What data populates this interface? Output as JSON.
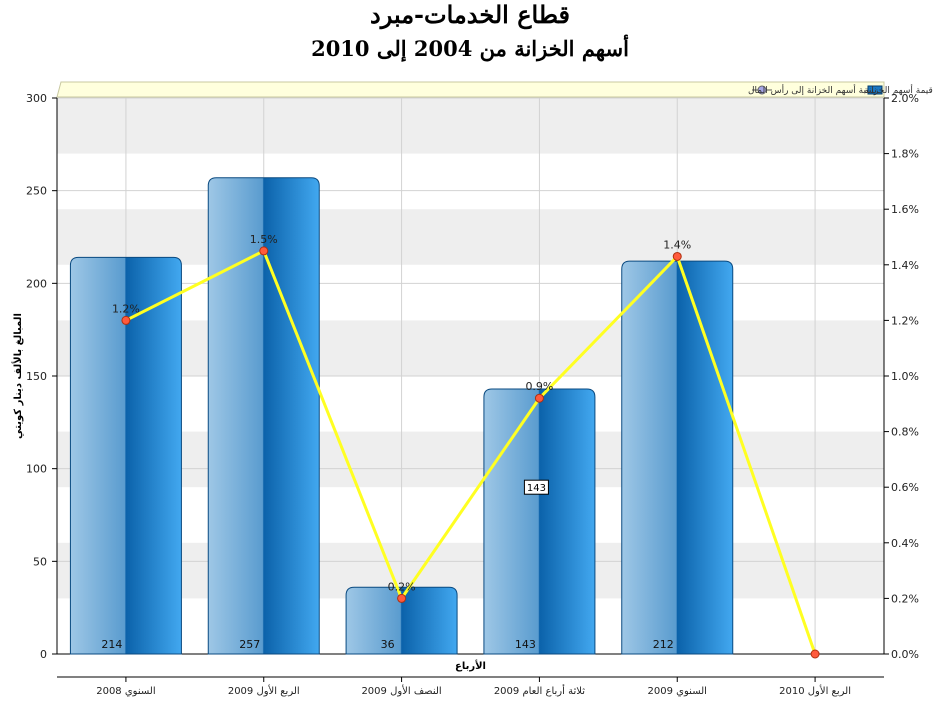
{
  "title": "قطاع الخدمات-مبرد",
  "subtitle": "أسهم الخزانة من 2004 إلى 2010",
  "chart_data": {
    "type": "bar",
    "categories": [
      "السنوي 2008",
      "الربع الأول 2009",
      "النصف الأول 2009",
      "ثلاثة أرباع العام 2009",
      "السنوي 2009",
      "الربع الأول 2010"
    ],
    "series": [
      {
        "name": "قيمة أسهم الخزانة",
        "type": "bar",
        "axis": "left",
        "values": [
          214,
          257,
          36,
          143,
          212,
          0
        ],
        "labels": [
          "214",
          "257",
          "36",
          "143",
          "212",
          ""
        ]
      },
      {
        "name": "نسبة أسهم الخزانة إلى رأس المال",
        "type": "line",
        "axis": "right",
        "values": [
          1.2,
          1.45,
          0.2,
          0.92,
          1.43,
          0.0
        ],
        "labels": [
          "1.2%",
          "1.5%",
          "0.2%",
          "0.9%",
          "1.4%",
          ""
        ]
      }
    ],
    "xlabel": "الأرباع",
    "ylabel": "المبالغ بالألف دينار كويتي",
    "ylim": [
      0,
      300
    ],
    "y2lim": [
      0,
      2.0
    ],
    "yticks": [
      "0",
      "50",
      "100",
      "150",
      "200",
      "250",
      "300"
    ],
    "y2ticks": [
      "0.0%",
      "0.2%",
      "0.4%",
      "0.6%",
      "0.8%",
      "1.0%",
      "1.2%",
      "1.4%",
      "1.6%",
      "1.8%",
      "2.0%"
    ],
    "tooltip": "143",
    "legend_position": "top",
    "colors": {
      "bar_light": "#8ab8dc",
      "bar_mid": "#1a78c2",
      "bar_dark": "#0a5fa6",
      "line": "#ffff22",
      "marker": "#ff5a3c",
      "band": "#eeeeee",
      "legend_bg": "#ffffdd"
    }
  }
}
